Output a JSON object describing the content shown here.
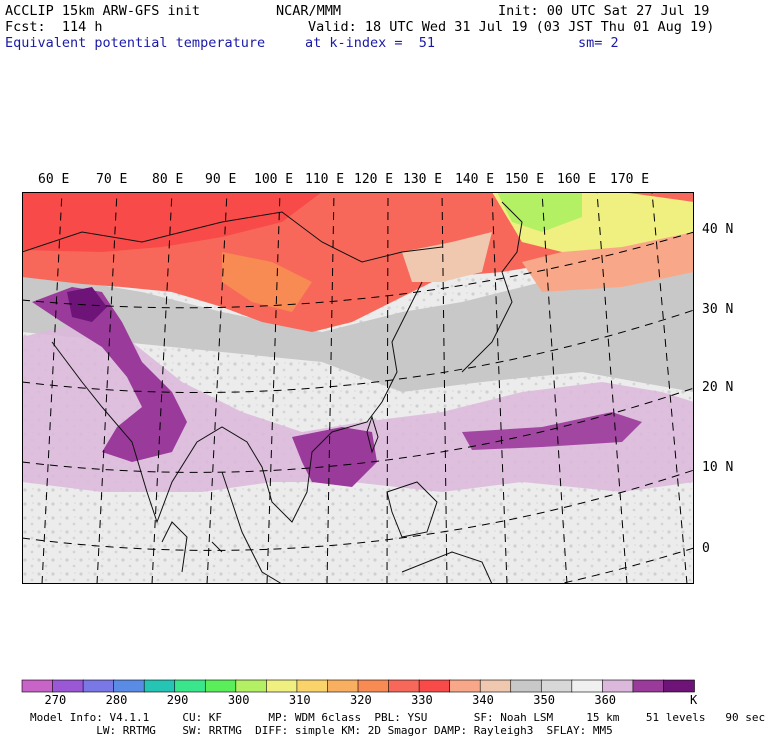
{
  "header": {
    "model": "ACCLIP 15km ARW-GFS init",
    "org": "NCAR/MMM",
    "init": "Init: 00 UTC Sat 27 Jul 19",
    "fcst": "Fcst:  114 h",
    "valid": "Valid: 18 UTC Wed 31 Jul 19 (03 JST Thu 01 Aug 19)",
    "field": "Equivalent potential temperature",
    "level": "at k-index =  51",
    "smooth": "sm= 2"
  },
  "map": {
    "lon_labels": [
      "60 E",
      "70 E",
      "80 E",
      "90 E",
      "100 E",
      "110 E",
      "120 E",
      "130 E",
      "140 E",
      "150 E",
      "160 E",
      "170 E"
    ],
    "lat_labels": [
      "40 N",
      "30 N",
      "20 N",
      "10 N",
      "0"
    ]
  },
  "colorbar": {
    "colors": [
      "#c863c8",
      "#9b58d6",
      "#7a78e6",
      "#5a8ce6",
      "#26c4b4",
      "#3ae68c",
      "#5aee5a",
      "#b4f064",
      "#f0f080",
      "#fad46a",
      "#f8b060",
      "#f88a54",
      "#f8685a",
      "#f84a48",
      "#f8a888",
      "#f0c8b0",
      "#c8c8c8",
      "#d8d8d8",
      "#f0f0f0",
      "#dcb8dc",
      "#9a3a9a",
      "#6e1478"
    ],
    "labels": [
      "270",
      "280",
      "290",
      "300",
      "310",
      "320",
      "330",
      "340",
      "350",
      "360"
    ],
    "unit": "K"
  },
  "footer": {
    "line1": "Model Info: V4.1.1     CU: KF       MP: WDM 6class  PBL: YSU       SF: Noah LSM     15 km    51 levels   90 sec",
    "line2": "          LW: RRTMG    SW: RRTMG  DIFF: simple KM: 2D Smagor DAMP: Rayleigh3  SFLAY: MM5"
  }
}
